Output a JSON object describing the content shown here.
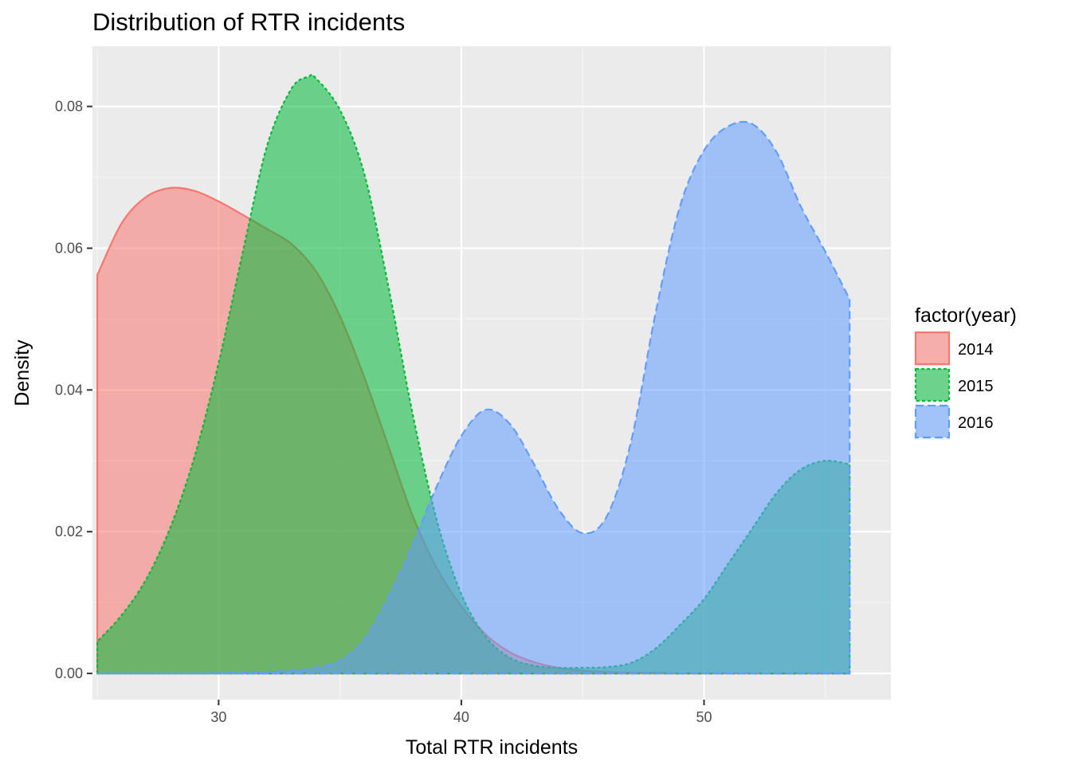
{
  "chart_data": {
    "type": "area",
    "subtype": "density",
    "title": "Distribution of RTR incidents",
    "xlabel": "Total RTR incidents",
    "ylabel": "Density",
    "xlim": [
      24.8,
      57.7
    ],
    "ylim": [
      -0.0037,
      0.0885
    ],
    "x_ticks": [
      30,
      40,
      50
    ],
    "y_ticks": [
      0.0,
      0.02,
      0.04,
      0.06,
      0.08
    ],
    "x_tick_labels": [
      "30",
      "40",
      "50"
    ],
    "y_tick_labels": [
      "0.00",
      "0.02",
      "0.04",
      "0.06",
      "0.08"
    ],
    "grid": true,
    "legend": {
      "title": "factor(year)",
      "position": "right"
    },
    "series": [
      {
        "name": "2014",
        "fill": "#F8766D",
        "line": "#F8766D",
        "dash": "solid",
        "x": [
          25,
          26,
          27,
          28,
          29,
          30,
          31,
          32,
          33,
          34,
          35,
          36,
          37,
          38,
          39,
          40,
          41,
          42,
          43,
          44,
          45,
          46,
          47,
          48,
          49,
          50,
          51,
          52,
          53,
          54,
          55,
          56
        ],
        "y": [
          0.0562,
          0.0635,
          0.0672,
          0.0685,
          0.0681,
          0.0666,
          0.0647,
          0.0627,
          0.0606,
          0.0568,
          0.0504,
          0.0418,
          0.032,
          0.0222,
          0.0148,
          0.0095,
          0.0055,
          0.003,
          0.0016,
          0.0008,
          0.0004,
          0.0002,
          0.0001,
          0.0001,
          0.0,
          0.0,
          0.0,
          0.0,
          0.0,
          0.0,
          0.0,
          0.0
        ]
      },
      {
        "name": "2015",
        "fill": "#00BA38",
        "line": "#00BA38",
        "dash": "dotted",
        "x": [
          25,
          26,
          27,
          28,
          29,
          30,
          31,
          32,
          33,
          33.7,
          34,
          35,
          36,
          37,
          38,
          39,
          40,
          41,
          42,
          43,
          44,
          45,
          46,
          47,
          48,
          49,
          50,
          51,
          52,
          53,
          54,
          55,
          56
        ],
        "y": [
          0.0045,
          0.0082,
          0.0132,
          0.0205,
          0.0305,
          0.0438,
          0.0595,
          0.0745,
          0.0825,
          0.0842,
          0.084,
          0.0795,
          0.0705,
          0.0545,
          0.0365,
          0.0215,
          0.0112,
          0.0052,
          0.0022,
          0.0011,
          0.0008,
          0.0008,
          0.0009,
          0.0015,
          0.0035,
          0.0068,
          0.0105,
          0.0155,
          0.0205,
          0.0255,
          0.0288,
          0.03,
          0.0295
        ]
      },
      {
        "name": "2016",
        "fill": "#619CFF",
        "line": "#619CFF",
        "dash": "dashed",
        "x": [
          25,
          28,
          31,
          33,
          34,
          35,
          36,
          37,
          38,
          39,
          40,
          41,
          42,
          43,
          44,
          45,
          46,
          47,
          48,
          49,
          50,
          51,
          52,
          53,
          54,
          55,
          56
        ],
        "y": [
          0.0,
          0.0,
          0.0001,
          0.0004,
          0.0008,
          0.0018,
          0.0048,
          0.0108,
          0.0182,
          0.0265,
          0.0335,
          0.0372,
          0.0352,
          0.0295,
          0.0232,
          0.0198,
          0.0222,
          0.0328,
          0.0508,
          0.0658,
          0.0738,
          0.0772,
          0.0775,
          0.0735,
          0.0658,
          0.0595,
          0.0528
        ]
      }
    ]
  }
}
